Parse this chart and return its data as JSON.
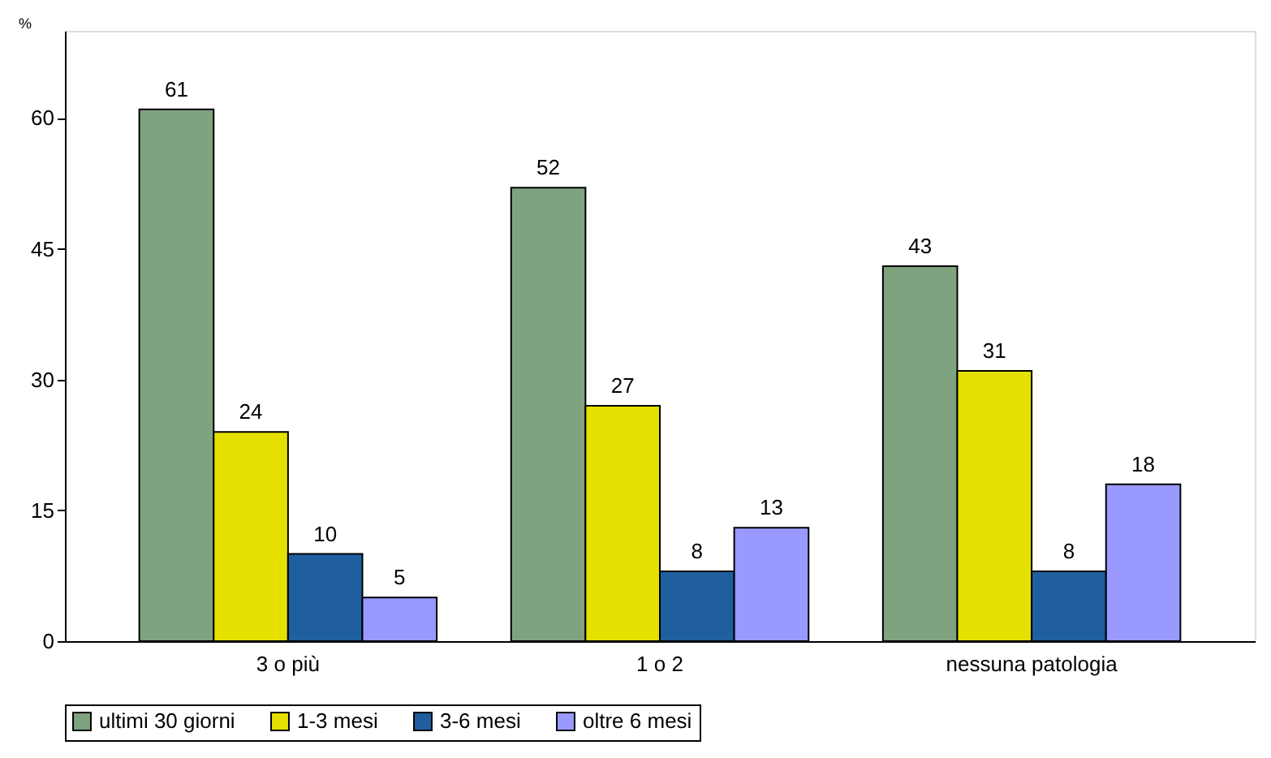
{
  "chart_data": {
    "type": "bar",
    "ylabel": "%",
    "categories": [
      "3 o più",
      "1 o 2",
      "nessuna patologia"
    ],
    "series": [
      {
        "name": "ultimi 30 giorni",
        "color": "#7fa27f",
        "values": [
          61,
          52,
          43
        ]
      },
      {
        "name": "1-3 mesi",
        "color": "#e6e000",
        "values": [
          24,
          27,
          31
        ]
      },
      {
        "name": "3-6 mesi",
        "color": "#1f5fa0",
        "values": [
          10,
          8,
          8
        ]
      },
      {
        "name": "oltre 6 mesi",
        "color": "#9999ff",
        "values": [
          5,
          13,
          18
        ]
      }
    ],
    "ylim": [
      0,
      70
    ],
    "yticks": [
      0,
      15,
      30,
      45,
      60
    ],
    "grid": false,
    "legend": "bottom",
    "data_labels": true
  }
}
